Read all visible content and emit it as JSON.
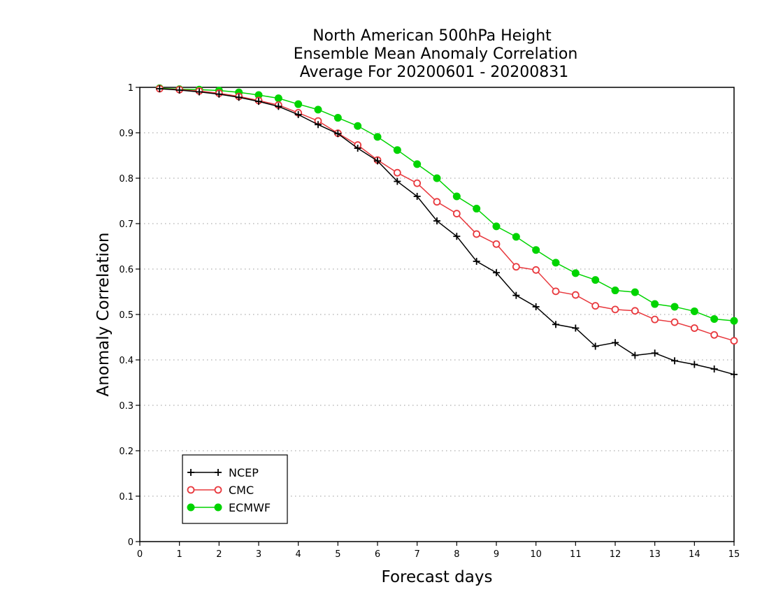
{
  "chart_data": {
    "type": "line",
    "title": [
      "North American 500hPa Height",
      "Ensemble Mean Anomaly Correlation",
      "Average For 20200601 - 20200831"
    ],
    "xlabel": "Forecast days",
    "ylabel": "Anomaly Correlation",
    "xlim": [
      0,
      15
    ],
    "ylim": [
      0,
      1
    ],
    "x_ticks": [
      "0",
      "1",
      "2",
      "3",
      "4",
      "5",
      "6",
      "7",
      "8",
      "9",
      "10",
      "11",
      "12",
      "13",
      "14",
      "15"
    ],
    "y_ticks": [
      "0",
      "0.1",
      "0.2",
      "0.3",
      "0.4",
      "0.5",
      "0.6",
      "0.7",
      "0.8",
      "0.9",
      "1"
    ],
    "grid": "horizontal-dotted",
    "legend_position": "bottom-left",
    "x": [
      0.5,
      1,
      1.5,
      2,
      2.5,
      3,
      3.5,
      4,
      4.5,
      5,
      5.5,
      6,
      6.5,
      7,
      7.5,
      8,
      8.5,
      9,
      9.5,
      10,
      10.5,
      11,
      11.5,
      12,
      12.5,
      13,
      13.5,
      14,
      14.5,
      15
    ],
    "series": [
      {
        "name": "NCEP",
        "color": "#000000",
        "marker": "plus",
        "values": [
          0.997,
          0.994,
          0.99,
          0.985,
          0.978,
          0.969,
          0.958,
          0.94,
          0.918,
          0.898,
          0.866,
          0.838,
          0.793,
          0.76,
          0.706,
          0.672,
          0.617,
          0.592,
          0.542,
          0.517,
          0.478,
          0.47,
          0.43,
          0.438,
          0.41,
          0.415,
          0.398,
          0.39,
          0.38,
          0.368
        ]
      },
      {
        "name": "CMC",
        "color": "#e8383d",
        "marker": "open-circle",
        "values": [
          0.997,
          0.995,
          0.992,
          0.987,
          0.98,
          0.971,
          0.961,
          0.944,
          0.926,
          0.899,
          0.873,
          0.84,
          0.812,
          0.789,
          0.748,
          0.722,
          0.677,
          0.655,
          0.605,
          0.598,
          0.551,
          0.543,
          0.519,
          0.511,
          0.508,
          0.489,
          0.483,
          0.47,
          0.455,
          0.442
        ]
      },
      {
        "name": "ECMWF",
        "color": "#00d400",
        "marker": "filled-circle",
        "values": [
          0.998,
          0.996,
          0.995,
          0.993,
          0.989,
          0.983,
          0.976,
          0.963,
          0.951,
          0.933,
          0.915,
          0.891,
          0.862,
          0.831,
          0.8,
          0.76,
          0.733,
          0.694,
          0.671,
          0.642,
          0.614,
          0.591,
          0.576,
          0.553,
          0.549,
          0.523,
          0.517,
          0.507,
          0.49,
          0.486
        ]
      }
    ]
  }
}
